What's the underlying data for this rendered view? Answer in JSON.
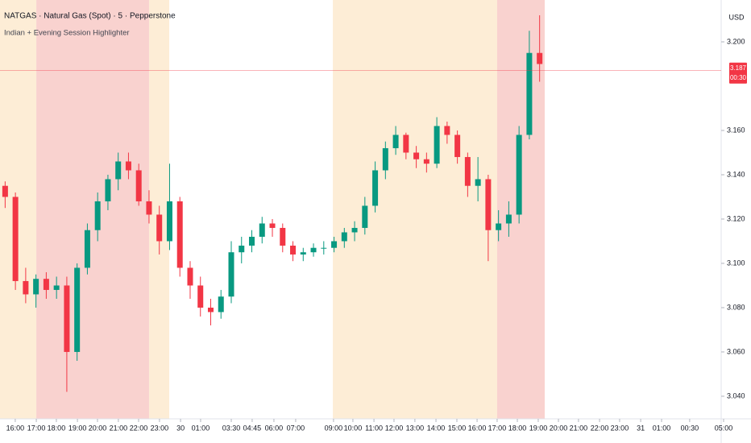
{
  "chart_data": {
    "type": "candlestick",
    "title": "NATGAS · Natural Gas (Spot) · 5 · Pepperstone",
    "subtitle": "Indian + Evening Session Highlighter",
    "currency": "USD",
    "up_color": "#089981",
    "down_color": "#f23645",
    "x": [
      3,
      9,
      15,
      21,
      27,
      33,
      39,
      45,
      51,
      57,
      63,
      69,
      75,
      81,
      87,
      93,
      99,
      105,
      111,
      117,
      123,
      129,
      135,
      141,
      147,
      153,
      159,
      165,
      171,
      177,
      183,
      189,
      195,
      201,
      207,
      213,
      219,
      225,
      231,
      237,
      243,
      249,
      255,
      261,
      267,
      273,
      279,
      285,
      291,
      297,
      303,
      309,
      315
    ],
    "open": [
      3.135,
      3.13,
      3.092,
      3.086,
      3.093,
      3.088,
      3.09,
      3.06,
      3.098,
      3.115,
      3.128,
      3.138,
      3.146,
      3.142,
      3.128,
      3.122,
      3.11,
      3.128,
      3.098,
      3.09,
      3.08,
      3.078,
      3.085,
      3.105,
      3.108,
      3.112,
      3.118,
      3.116,
      3.108,
      3.104,
      3.105,
      3.107,
      3.107,
      3.11,
      3.114,
      3.116,
      3.126,
      3.142,
      3.152,
      3.158,
      3.15,
      3.147,
      3.145,
      3.162,
      3.158,
      3.148,
      3.135,
      3.138,
      3.115,
      3.118,
      3.122,
      3.158,
      3.195
    ],
    "high": [
      3.137,
      3.132,
      3.098,
      3.095,
      3.096,
      3.094,
      3.094,
      3.1,
      3.118,
      3.132,
      3.14,
      3.15,
      3.15,
      3.145,
      3.133,
      3.126,
      3.145,
      3.13,
      3.101,
      3.094,
      3.084,
      3.088,
      3.11,
      3.112,
      3.115,
      3.121,
      3.12,
      3.118,
      3.11,
      3.107,
      3.109,
      3.11,
      3.112,
      3.116,
      3.119,
      3.13,
      3.146,
      3.155,
      3.162,
      3.159,
      3.153,
      3.15,
      3.166,
      3.164,
      3.16,
      3.15,
      3.148,
      3.14,
      3.124,
      3.128,
      3.162,
      3.205,
      3.212
    ],
    "low": [
      3.125,
      3.088,
      3.082,
      3.08,
      3.084,
      3.084,
      3.042,
      3.056,
      3.095,
      3.11,
      3.124,
      3.133,
      3.138,
      3.126,
      3.118,
      3.104,
      3.106,
      3.094,
      3.084,
      3.076,
      3.072,
      3.075,
      3.082,
      3.1,
      3.105,
      3.109,
      3.112,
      3.105,
      3.101,
      3.101,
      3.103,
      3.104,
      3.105,
      3.107,
      3.11,
      3.113,
      3.123,
      3.138,
      3.149,
      3.147,
      3.143,
      3.141,
      3.143,
      3.154,
      3.145,
      3.13,
      3.128,
      3.101,
      3.11,
      3.112,
      3.118,
      3.156,
      3.182
    ],
    "close": [
      3.13,
      3.092,
      3.086,
      3.093,
      3.088,
      3.09,
      3.06,
      3.098,
      3.115,
      3.128,
      3.138,
      3.146,
      3.142,
      3.128,
      3.122,
      3.11,
      3.128,
      3.098,
      3.09,
      3.08,
      3.078,
      3.085,
      3.105,
      3.108,
      3.112,
      3.118,
      3.116,
      3.108,
      3.104,
      3.105,
      3.107,
      3.107,
      3.11,
      3.114,
      3.116,
      3.126,
      3.142,
      3.152,
      3.158,
      3.15,
      3.147,
      3.145,
      3.162,
      3.158,
      3.148,
      3.135,
      3.138,
      3.115,
      3.118,
      3.122,
      3.158,
      3.195,
      3.19
    ],
    "sessions": [
      {
        "start": 0,
        "end": 21.2,
        "color": "#fdedd6"
      },
      {
        "start": 21.2,
        "end": 87,
        "color": "#f9d2cf"
      },
      {
        "start": 87,
        "end": 98.8,
        "color": "#fdedd6"
      },
      {
        "start": 194.3,
        "end": 290.2,
        "color": "#fdedd6"
      },
      {
        "start": 290.2,
        "end": 318,
        "color": "#f9d2cf"
      }
    ],
    "last_price": 3.187,
    "countdown": "00:30",
    "last_color": "#f23645",
    "xlim": [
      0,
      438.4
    ],
    "ylim": [
      3.0298,
      3.2189
    ],
    "yticks": [
      {
        "value": 3.04,
        "label": "3.040"
      },
      {
        "value": 3.06,
        "label": "3.060"
      },
      {
        "value": 3.08,
        "label": "3.080"
      },
      {
        "value": 3.1,
        "label": "3.100"
      },
      {
        "value": 3.12,
        "label": "3.120"
      },
      {
        "value": 3.14,
        "label": "3.140"
      },
      {
        "value": 3.16,
        "label": "3.160"
      },
      {
        "value": 3.2,
        "label": "3.200"
      }
    ],
    "xticks": [
      {
        "value": 8.9,
        "label": "16:00"
      },
      {
        "value": 21.2,
        "label": "17:00"
      },
      {
        "value": 32.9,
        "label": "18:00"
      },
      {
        "value": 45.2,
        "label": "19:00"
      },
      {
        "value": 56.9,
        "label": "20:00"
      },
      {
        "value": 69.1,
        "label": "21:00"
      },
      {
        "value": 80.9,
        "label": "22:00"
      },
      {
        "value": 93.1,
        "label": "23:00"
      },
      {
        "value": 105.4,
        "label": "30"
      },
      {
        "value": 117.1,
        "label": "01:00"
      },
      {
        "value": 135,
        "label": "03:30"
      },
      {
        "value": 147.2,
        "label": "04:45"
      },
      {
        "value": 159.9,
        "label": "06:00"
      },
      {
        "value": 172.6,
        "label": "07:00"
      },
      {
        "value": 194.7,
        "label": "09:00"
      },
      {
        "value": 206,
        "label": "10:00"
      },
      {
        "value": 218.3,
        "label": "11:00"
      },
      {
        "value": 230,
        "label": "12:00"
      },
      {
        "value": 242.2,
        "label": "13:00"
      },
      {
        "value": 254.5,
        "label": "14:00"
      },
      {
        "value": 266.7,
        "label": "15:00"
      },
      {
        "value": 278.5,
        "label": "16:00"
      },
      {
        "value": 290.2,
        "label": "17:00"
      },
      {
        "value": 302,
        "label": "18:00"
      },
      {
        "value": 314.2,
        "label": "19:00"
      },
      {
        "value": 326,
        "label": "20:00"
      },
      {
        "value": 337.7,
        "label": "21:00"
      },
      {
        "value": 350,
        "label": "22:00"
      },
      {
        "value": 361.7,
        "label": "23:00"
      },
      {
        "value": 374,
        "label": "31"
      },
      {
        "value": 386.2,
        "label": "01:00"
      },
      {
        "value": 402.6,
        "label": "00:30"
      },
      {
        "value": 422.4,
        "label": "05:00"
      }
    ]
  }
}
